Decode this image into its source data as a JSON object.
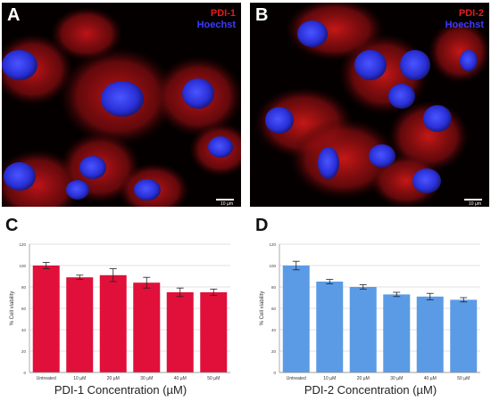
{
  "panels": {
    "A": {
      "letter": "A",
      "stain_label": "PDI-1",
      "nuclear_label": "Hoechst",
      "scale_label": "10 µm"
    },
    "B": {
      "letter": "B",
      "stain_label": "PDI-2",
      "nuclear_label": "Hoechst",
      "scale_label": "10 µm"
    },
    "C": {
      "letter": "C"
    },
    "D": {
      "letter": "D"
    }
  },
  "colors": {
    "stain_red": "#e41a1a",
    "nuclear_blue": "#3b3bff",
    "bar_red": "#e0103a",
    "bar_blue": "#5b9be6"
  },
  "chart_data": [
    {
      "type": "bar",
      "panel": "C",
      "categories": [
        "Untreated",
        "10 µM",
        "20 µM",
        "30 µM",
        "40 µM",
        "50 µM"
      ],
      "values": [
        100,
        89,
        91,
        84,
        75,
        75
      ],
      "errors": [
        3,
        2,
        6,
        5,
        4,
        3
      ],
      "xlabel": "PDI-1 Concentration (µM)",
      "ylabel": "% Cell viability",
      "ylim": [
        0,
        120
      ],
      "yticks": [
        "0",
        "20",
        "40",
        "60",
        "80",
        "100",
        "120"
      ],
      "grid": true,
      "color": "#e0103a"
    },
    {
      "type": "bar",
      "panel": "D",
      "categories": [
        "Untreated",
        "10 µM",
        "20 µM",
        "30 µM",
        "40 µM",
        "50 µM"
      ],
      "values": [
        100,
        85,
        80,
        73,
        71,
        68
      ],
      "errors": [
        4,
        2,
        2,
        2,
        3,
        2
      ],
      "xlabel": "PDI-2 Concentration (µM)",
      "ylabel": "% Cell viability",
      "ylim": [
        0,
        120
      ],
      "yticks": [
        "0",
        "20",
        "40",
        "60",
        "80",
        "100",
        "120"
      ],
      "grid": true,
      "color": "#5b9be6"
    }
  ]
}
